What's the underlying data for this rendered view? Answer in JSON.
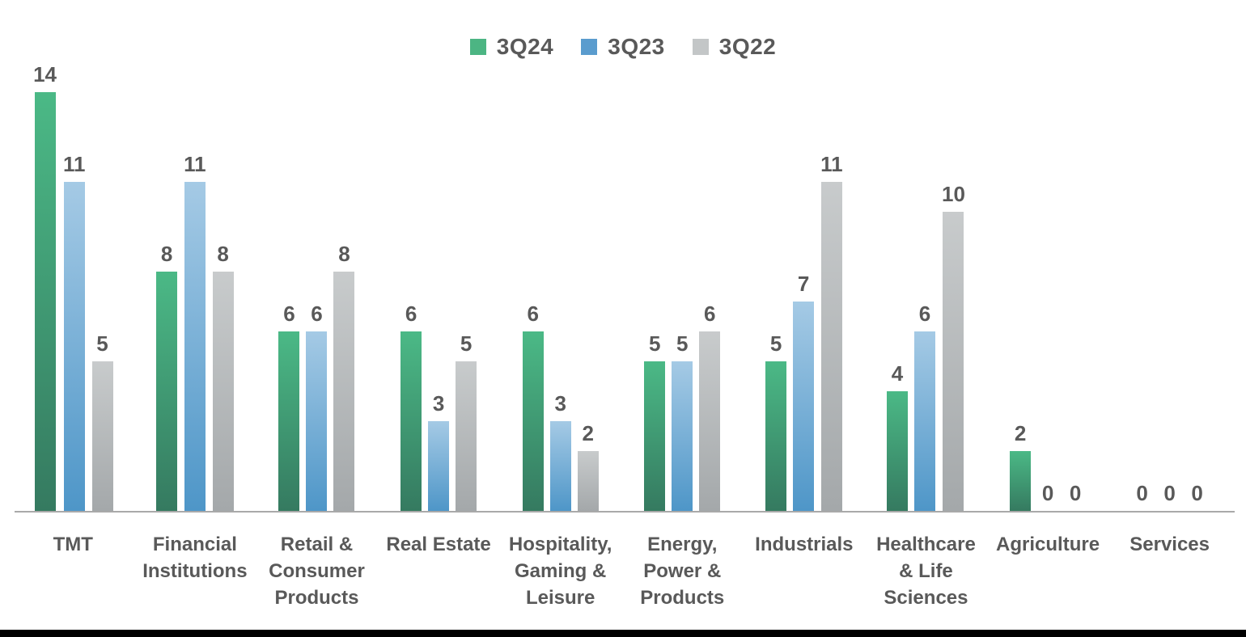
{
  "legend": {
    "items": [
      {
        "label": "3Q24",
        "color": "#4cb583"
      },
      {
        "label": "3Q23",
        "color": "#5a9cce"
      },
      {
        "label": "3Q22",
        "color": "#c3c6c7"
      }
    ]
  },
  "chart_data": {
    "type": "bar",
    "title": "",
    "xlabel": "",
    "ylabel": "",
    "ylim": [
      0,
      14
    ],
    "grid": false,
    "y_axis_visible": false,
    "bar_value_labels": true,
    "legend_position": "top-center",
    "categories": [
      "TMT",
      "Financial\nInstitutions",
      "Retail &\nConsumer\nProducts",
      "Real Estate",
      "Hospitality,\nGaming &\nLeisure",
      "Energy,\nPower &\nProducts",
      "Industrials",
      "Healthcare\n& Life\nSciences",
      "Agriculture",
      "Services"
    ],
    "series": [
      {
        "name": "3Q24",
        "values": [
          14,
          8,
          6,
          6,
          6,
          5,
          5,
          4,
          2,
          0
        ],
        "color_top": "#4bb986",
        "color_bottom": "#357a60"
      },
      {
        "name": "3Q23",
        "values": [
          11,
          11,
          6,
          3,
          3,
          5,
          7,
          6,
          0,
          0
        ],
        "color_top": "#a5cae5",
        "color_bottom": "#4e96c8"
      },
      {
        "name": "3Q22",
        "values": [
          5,
          8,
          8,
          5,
          2,
          6,
          11,
          10,
          0,
          0
        ],
        "color_top": "#c8cbcc",
        "color_bottom": "#a4a8aa"
      }
    ]
  },
  "colors": {
    "value_label": "#595959",
    "category_label": "#595959",
    "legend_label": "#595959",
    "axis_line": "#a9a9a9",
    "bottom_strip": "#000000",
    "background": "#ffffff"
  }
}
